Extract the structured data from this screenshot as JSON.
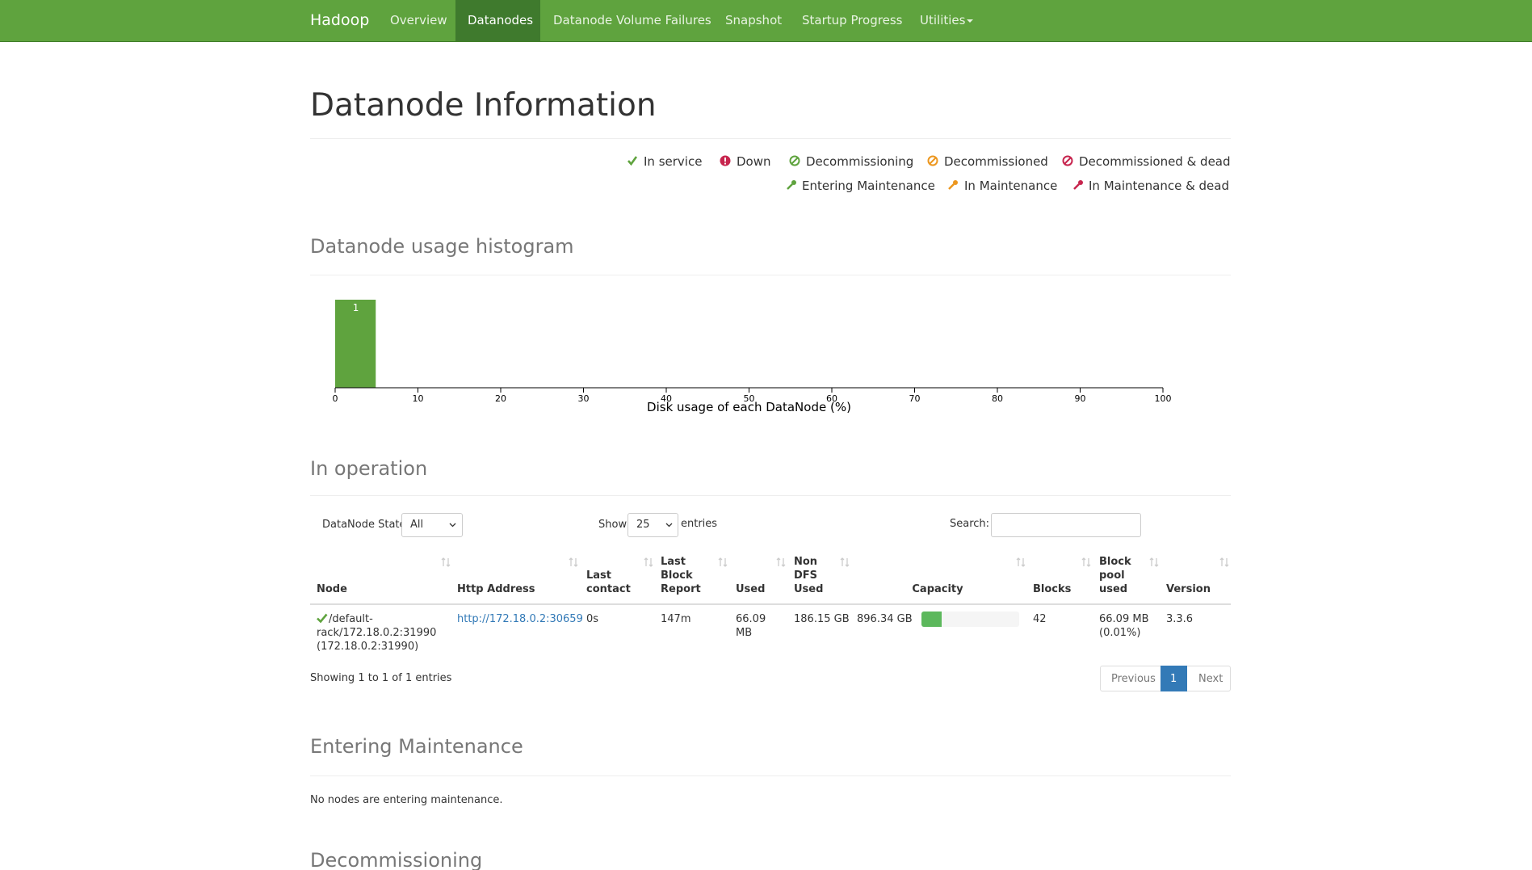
{
  "navbar": {
    "brand": "Hadoop",
    "items": [
      "Overview",
      "Datanodes",
      "Datanode Volume Failures",
      "Snapshot",
      "Startup Progress",
      "Utilities"
    ]
  },
  "page_title": "Datanode Information",
  "legend": [
    "In service",
    "Down",
    "Decommissioning",
    "Decommissioned",
    "Decommissioned & dead",
    "Entering Maintenance",
    "In Maintenance",
    "In Maintenance & dead"
  ],
  "chart_data": {
    "type": "histogram",
    "title": "Datanode usage histogram",
    "x_label": "Disk usage of each DataNode (%)",
    "bins": [
      0,
      5
    ],
    "counts": [
      1
    ],
    "xlim": [
      0,
      100
    ],
    "xticks": [
      0,
      10,
      20,
      30,
      40,
      50,
      60,
      70,
      80,
      90,
      100
    ],
    "color": "#5fa33e"
  },
  "in_operation": {
    "title": "In operation",
    "state_label": "DataNode State",
    "state_value": "All",
    "show_label": "Show",
    "page_length": "25",
    "entries_label": "entries",
    "search_label": "Search:",
    "columns": [
      "Node",
      "Http Address",
      "Last contact",
      "Last Block Report",
      "Used",
      "Non DFS Used",
      "Capacity",
      "Blocks",
      "Block pool used",
      "Version"
    ],
    "rows": [
      [
        "/default-rack/172.18.0.2:31990 (172.18.0.2:31990)",
        "http://172.18.0.2:30659",
        "0s",
        "147m",
        "66.09 MB",
        "186.15 GB",
        "896.34 GB",
        "42",
        "66.09 MB (0.01%)",
        "3.3.6"
      ]
    ],
    "capacity_percent": [
      21
    ],
    "info": "Showing 1 to 1 of 1 entries",
    "pagination": [
      "Previous",
      "1",
      "Next"
    ]
  },
  "entering_maintenance": {
    "title": "Entering Maintenance",
    "message": "No nodes are entering maintenance."
  },
  "decommissioning": {
    "title": "Decommissioning"
  }
}
